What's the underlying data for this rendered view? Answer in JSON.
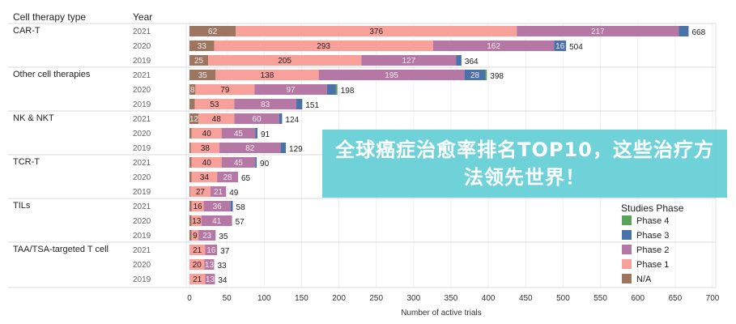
{
  "banner": {
    "title": "全球癌症治愈率排名TOP10，这些治疗方法领先世界！"
  },
  "chart_data": {
    "type": "bar",
    "orientation": "horizontal-stacked",
    "col_headers": {
      "type": "Cell therapy type",
      "year": "Year"
    },
    "xlabel": "Number of active trials",
    "xlim": [
      0,
      700
    ],
    "xticks": [
      0,
      50,
      100,
      150,
      200,
      250,
      300,
      350,
      400,
      450,
      500,
      550,
      600,
      650,
      700
    ],
    "grid": true,
    "legend": {
      "title": "Studies Phase",
      "placement": "bottom-right",
      "entries": [
        {
          "name": "Phase 4",
          "color": "#5ba35b"
        },
        {
          "name": "Phase 3",
          "color": "#4a72a8"
        },
        {
          "name": "Phase 2",
          "color": "#b577a4"
        },
        {
          "name": "Phase 1",
          "color": "#f8a19b"
        },
        {
          "name": "N/A",
          "color": "#9d7661"
        }
      ]
    },
    "series_order": [
      "N/A",
      "Phase 1",
      "Phase 2",
      "Phase 3",
      "Phase 4"
    ],
    "groups": [
      {
        "name": "CAR-T",
        "rows": [
          {
            "year": "2021",
            "values": [
              62,
              376,
              217,
              13,
              0
            ],
            "total": 668
          },
          {
            "year": "2020",
            "values": [
              33,
              293,
              162,
              16,
              0
            ],
            "total": 504
          },
          {
            "year": "2019",
            "values": [
              25,
              205,
              127,
              7,
              0
            ],
            "total": 364
          }
        ]
      },
      {
        "name": "Other cell therapies",
        "rows": [
          {
            "year": "2021",
            "values": [
              35,
              138,
              195,
              28,
              2
            ],
            "total": 398
          },
          {
            "year": "2020",
            "values": [
              8,
              79,
              97,
              12,
              2
            ],
            "total": 198
          },
          {
            "year": "2019",
            "values": [
              7,
              53,
              83,
              8,
              0
            ],
            "total": 151
          }
        ]
      },
      {
        "name": "NK & NKT",
        "rows": [
          {
            "year": "2021",
            "values": [
              12,
              48,
              60,
              4,
              0
            ],
            "total": 124
          },
          {
            "year": "2020",
            "values": [
              3,
              40,
              45,
              3,
              0
            ],
            "total": 91
          },
          {
            "year": "2019",
            "values": [
              2,
              38,
              82,
              7,
              0
            ],
            "total": 129
          }
        ]
      },
      {
        "name": "TCR-T",
        "rows": [
          {
            "year": "2021",
            "values": [
              3,
              40,
              45,
              2,
              0
            ],
            "total": 90
          },
          {
            "year": "2020",
            "values": [
              3,
              34,
              28,
              0,
              0
            ],
            "total": 65
          },
          {
            "year": "2019",
            "values": [
              1,
              27,
              21,
              0,
              0
            ],
            "total": 49
          }
        ]
      },
      {
        "name": "TILs",
        "rows": [
          {
            "year": "2021",
            "values": [
              3,
              16,
              36,
              3,
              0
            ],
            "total": 58
          },
          {
            "year": "2020",
            "values": [
              3,
              13,
              41,
              0,
              0
            ],
            "total": 57
          },
          {
            "year": "2019",
            "values": [
              3,
              9,
              23,
              0,
              0
            ],
            "total": 35
          }
        ]
      },
      {
        "name": "TAA/TSA-targeted T cell",
        "rows": [
          {
            "year": "2021",
            "values": [
              0,
              21,
              16,
              0,
              0
            ],
            "total": 37
          },
          {
            "year": "2020",
            "values": [
              0,
              20,
              13,
              0,
              0
            ],
            "total": 33
          },
          {
            "year": "2019",
            "values": [
              0,
              21,
              13,
              0,
              0
            ],
            "total": 34
          }
        ]
      }
    ]
  }
}
